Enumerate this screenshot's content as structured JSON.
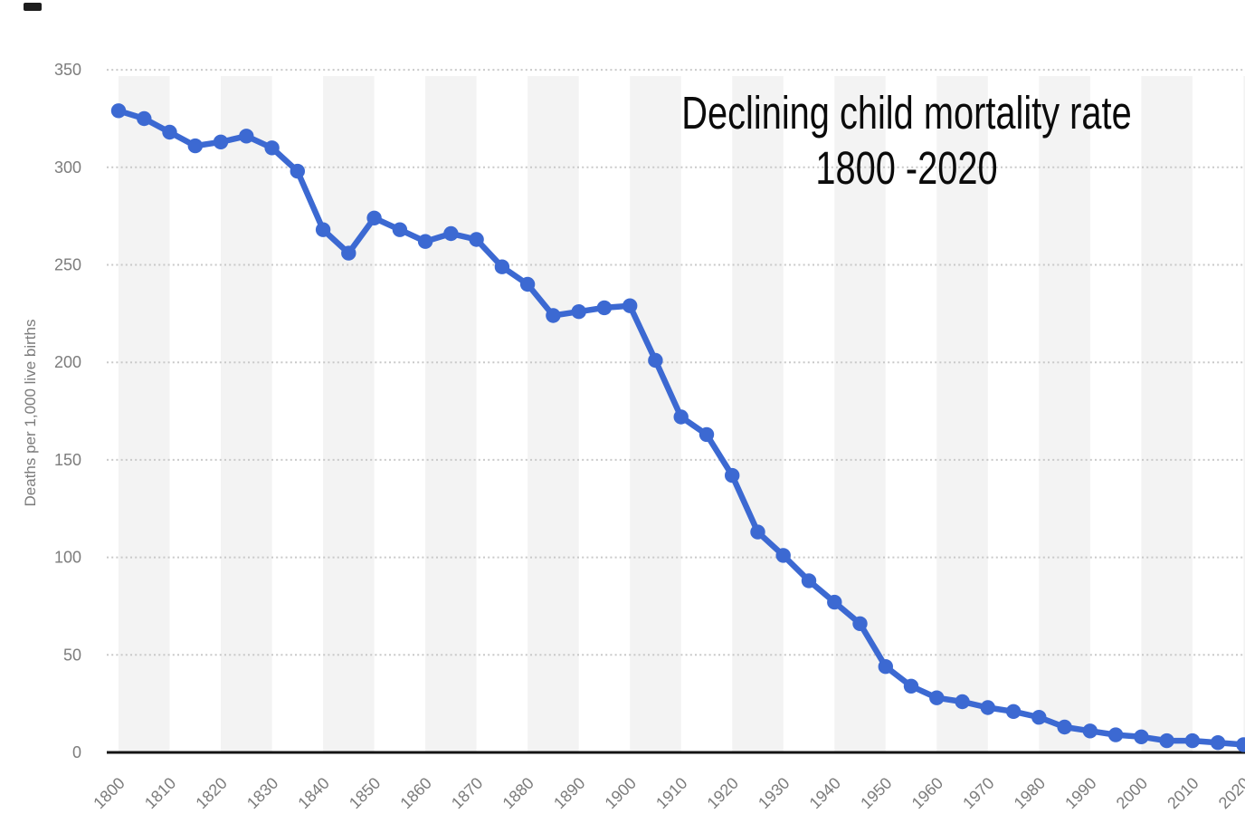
{
  "chart_data": {
    "type": "line",
    "title": "Declining child mortality rate 1800 -2020",
    "title_lines": [
      "Declining child mortality rate",
      "1800 -2020"
    ],
    "xlabel": "",
    "ylabel": "Deaths per 1,000 live births",
    "series_name": "Child mortality rate",
    "unit": "deaths per 1,000 live births",
    "ylim": [
      0,
      350
    ],
    "xlim": [
      1800,
      2020
    ],
    "y_ticks": [
      0,
      50,
      100,
      150,
      200,
      250,
      300,
      350
    ],
    "x_tick_labels": [
      "1800",
      "1810",
      "1820",
      "1830",
      "1840",
      "1850",
      "1860",
      "1870",
      "1880",
      "1890",
      "1900",
      "1910",
      "1920",
      "1930",
      "1940",
      "1950",
      "1960",
      "1970",
      "1980",
      "1990",
      "2000",
      "2010",
      "2020"
    ],
    "x": [
      1800,
      1805,
      1810,
      1815,
      1820,
      1825,
      1830,
      1835,
      1840,
      1845,
      1850,
      1855,
      1860,
      1865,
      1870,
      1875,
      1880,
      1885,
      1890,
      1895,
      1900,
      1905,
      1910,
      1915,
      1920,
      1925,
      1930,
      1935,
      1940,
      1945,
      1950,
      1955,
      1960,
      1965,
      1970,
      1975,
      1980,
      1985,
      1990,
      1995,
      2000,
      2005,
      2010,
      2015,
      2020
    ],
    "values": [
      329,
      325,
      318,
      311,
      313,
      316,
      310,
      298,
      268,
      256,
      274,
      268,
      262,
      266,
      263,
      249,
      240,
      224,
      226,
      228,
      229,
      201,
      172,
      163,
      142,
      113,
      101,
      88,
      77,
      66,
      44,
      34,
      28,
      26,
      23,
      21,
      18,
      13,
      11,
      9,
      8,
      6,
      6,
      5,
      4
    ],
    "grid": "horizontal dotted lines, on",
    "legend": "none",
    "background_bands": "alternating vertical decade stripes starting gray at 1800-1810",
    "colors": {
      "line": "#3c69d2",
      "band": "#f3f3f3",
      "grid": "#c9c9c9",
      "axis": "#141414",
      "tick_text": "#7c7c7c",
      "title_text": "#0b0b0b"
    }
  }
}
